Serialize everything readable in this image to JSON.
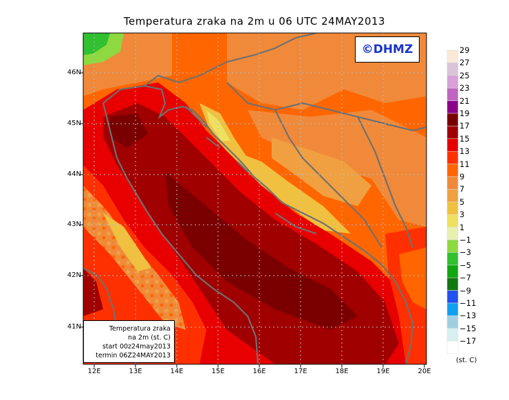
{
  "title": "Temperatura zraka na 2m u 06 UTC 24MAY2013",
  "logo": "©DHMZ",
  "info_box": {
    "lines": [
      "Temperatura zraka",
      "na 2m (st. C)",
      "start 00z24may2013",
      "termin 06Z24MAY2013"
    ]
  },
  "lat_labels": [
    "46N",
    "45N",
    "44N",
    "43N",
    "42N",
    "41N"
  ],
  "lon_labels": [
    "12E",
    "13E",
    "14E",
    "15E",
    "16E",
    "17E",
    "18E",
    "19E",
    "20E"
  ],
  "legend": {
    "labels": [
      "29",
      "27",
      "25",
      "23",
      "21",
      "19",
      "17",
      "15",
      "13",
      "11",
      "9",
      "7",
      "5",
      "3",
      "1",
      "−1",
      "−3",
      "−5",
      "−7",
      "−9",
      "−11",
      "−13",
      "−15",
      "−17"
    ],
    "colors": [
      "#fbe9d8",
      "#d9c3d9",
      "#d9a0d9",
      "#c066c0",
      "#8a008a",
      "#7a0000",
      "#a00000",
      "#e80000",
      "#ff3000",
      "#ff6600",
      "#f08a3a",
      "#f0a040",
      "#f0c040",
      "#f0e060",
      "#e8f0b0",
      "#8ed840",
      "#30c030",
      "#10a810",
      "#107810",
      "#2050f0",
      "#10a0f0",
      "#a0d0e0",
      "#d8f0f0",
      "#ffffff"
    ],
    "units": "(st. C)"
  }
}
